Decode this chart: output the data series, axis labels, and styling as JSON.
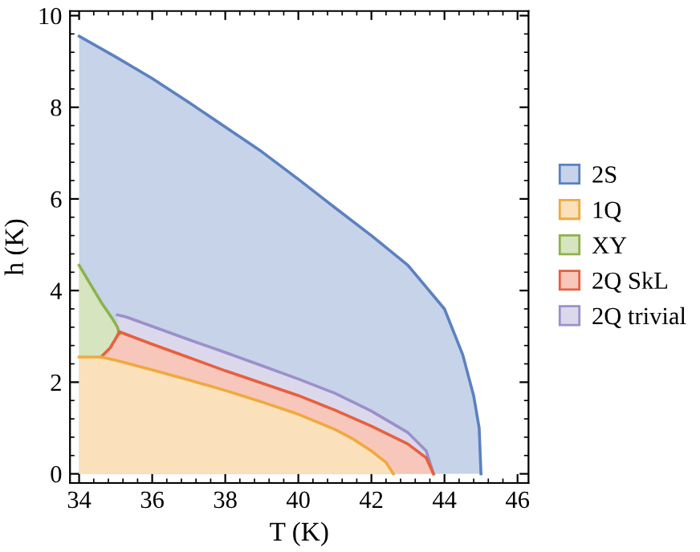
{
  "chart_data": {
    "type": "area",
    "xlabel": "T (K)",
    "ylabel": "h (K)",
    "xlim": [
      33.75,
      46.3
    ],
    "ylim": [
      -0.2,
      10.1
    ],
    "xticks": [
      34,
      36,
      38,
      40,
      42,
      44,
      46
    ],
    "yticks": [
      0,
      2,
      4,
      6,
      8,
      10
    ],
    "grid": false,
    "legend": "right",
    "series": [
      {
        "name": "2S",
        "color": "#c6d3e9",
        "x": [
          34,
          35,
          36,
          37,
          38,
          39,
          40,
          41,
          42,
          43,
          44,
          44.5,
          44.8,
          44.95,
          45
        ],
        "values": [
          9.55,
          9.1,
          8.63,
          8.11,
          7.57,
          7.03,
          6.43,
          5.81,
          5.2,
          4.55,
          3.6,
          2.6,
          1.7,
          1.0,
          0
        ]
      },
      {
        "name": "1Q",
        "color": "#fae1bb",
        "x": [
          34,
          34.6,
          35,
          36,
          37,
          38,
          39,
          40,
          41,
          41.5,
          42,
          42.4,
          42.6
        ],
        "values": [
          2.55,
          2.55,
          2.48,
          2.27,
          2.05,
          1.82,
          1.57,
          1.3,
          0.97,
          0.76,
          0.5,
          0.25,
          0
        ]
      },
      {
        "name": "XY",
        "color": "#d7e4c0",
        "x": [
          34,
          34.3,
          34.6,
          34.9,
          35.05,
          35.1
        ],
        "values": [
          4.55,
          4.15,
          3.75,
          3.4,
          3.2,
          3.05
        ]
      },
      {
        "name": "2Q SkL",
        "color": "#f7c7bb",
        "x": [
          34.6,
          34.85,
          35.0,
          35.1,
          36,
          37,
          38,
          39,
          40,
          41,
          42,
          43,
          43.5,
          43.7
        ],
        "values": [
          2.55,
          2.75,
          2.95,
          3.1,
          2.83,
          2.54,
          2.25,
          1.98,
          1.71,
          1.39,
          1.04,
          0.65,
          0.35,
          0
        ]
      },
      {
        "name": "2Q trivial",
        "color": "#dcd8ec",
        "x": [
          35.05,
          35.3,
          36,
          37,
          38,
          39,
          40,
          41,
          42,
          43,
          43.5,
          43.7
        ],
        "values": [
          3.47,
          3.42,
          3.22,
          2.93,
          2.65,
          2.36,
          2.07,
          1.76,
          1.37,
          0.9,
          0.5,
          0
        ]
      }
    ]
  }
}
